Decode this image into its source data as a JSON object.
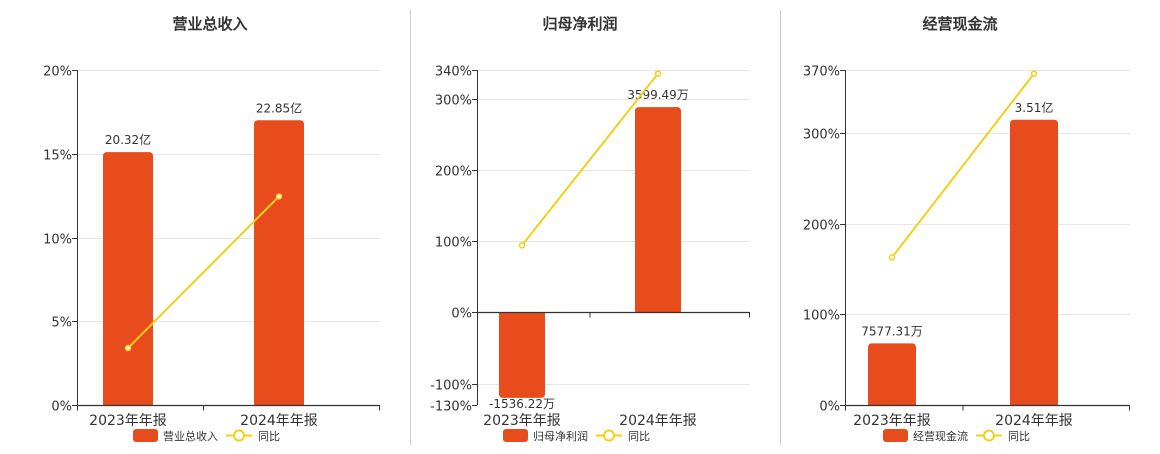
{
  "colors": {
    "bar": "#e84c1c",
    "line": "#f2d01a",
    "axis": "#333333",
    "grid": "#e6e6e6",
    "divider": "#cccccc",
    "text": "#333333"
  },
  "chart_data": [
    {
      "type": "bar+line",
      "title": "营业总收入",
      "categories": [
        "2023年年报",
        "2024年年报"
      ],
      "series": [
        {
          "name": "营业总收入",
          "type": "bar",
          "values": [
            15.1,
            17.0
          ],
          "labels": [
            "20.32亿",
            "22.85亿"
          ]
        },
        {
          "name": "同比",
          "type": "line",
          "values": [
            3.4,
            12.45
          ]
        }
      ],
      "yticks": [
        "20%",
        "15%",
        "10%",
        "5%",
        "0%"
      ],
      "ytick_values": [
        20,
        15,
        10,
        5,
        0
      ],
      "ylim": [
        0,
        20
      ],
      "grid": true,
      "legend": "bottom"
    },
    {
      "type": "bar+line",
      "title": "归母净利润",
      "categories": [
        "2023年年报",
        "2024年年报"
      ],
      "series": [
        {
          "name": "归母净利润",
          "type": "bar",
          "values": [
            -120,
            288
          ],
          "labels": [
            "-1536.22万",
            "3599.49万"
          ]
        },
        {
          "name": "同比",
          "type": "line",
          "values": [
            94,
            335
          ]
        }
      ],
      "yticks": [
        "340%",
        "300%",
        "200%",
        "100%",
        "0%",
        "-100%",
        "-130%"
      ],
      "ytick_values": [
        340,
        300,
        200,
        100,
        0,
        -100,
        -130
      ],
      "ylim": [
        -130,
        340
      ],
      "grid": true,
      "legend": "bottom"
    },
    {
      "type": "bar+line",
      "title": "经营现金流",
      "categories": [
        "2023年年报",
        "2024年年报"
      ],
      "series": [
        {
          "name": "经营现金流",
          "type": "bar",
          "values": [
            68,
            315
          ],
          "labels": [
            "7577.31万",
            "3.51亿"
          ]
        },
        {
          "name": "同比",
          "type": "line",
          "values": [
            163,
            366
          ]
        }
      ],
      "yticks": [
        "370%",
        "300%",
        "200%",
        "100%",
        "0%"
      ],
      "ytick_values": [
        370,
        300,
        200,
        100,
        0
      ],
      "ylim": [
        0,
        370
      ],
      "grid": true,
      "legend": "bottom"
    }
  ]
}
